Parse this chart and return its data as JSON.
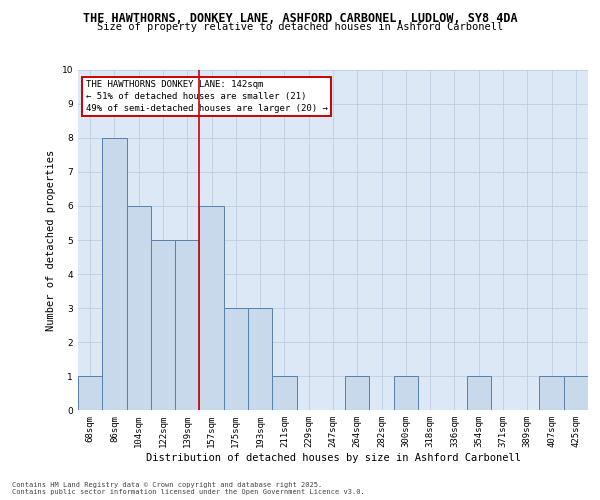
{
  "title1": "THE HAWTHORNS, DONKEY LANE, ASHFORD CARBONEL, LUDLOW, SY8 4DA",
  "title2": "Size of property relative to detached houses in Ashford Carbonell",
  "xlabel": "Distribution of detached houses by size in Ashford Carbonell",
  "ylabel": "Number of detached properties",
  "categories": [
    "68sqm",
    "86sqm",
    "104sqm",
    "122sqm",
    "139sqm",
    "157sqm",
    "175sqm",
    "193sqm",
    "211sqm",
    "229sqm",
    "247sqm",
    "264sqm",
    "282sqm",
    "300sqm",
    "318sqm",
    "336sqm",
    "354sqm",
    "371sqm",
    "389sqm",
    "407sqm",
    "425sqm"
  ],
  "values": [
    1,
    8,
    6,
    5,
    5,
    6,
    3,
    3,
    1,
    0,
    0,
    1,
    0,
    1,
    0,
    0,
    1,
    0,
    0,
    1,
    1
  ],
  "bar_color": "#c9d9ec",
  "bar_edge_color": "#5580b0",
  "vline_x": 4.5,
  "vline_color": "#cc0000",
  "annotation_lines": [
    "THE HAWTHORNS DONKEY LANE: 142sqm",
    "← 51% of detached houses are smaller (21)",
    "49% of semi-detached houses are larger (20) →"
  ],
  "annotation_box_color": "#cc0000",
  "ylim": [
    0,
    10
  ],
  "yticks": [
    0,
    1,
    2,
    3,
    4,
    5,
    6,
    7,
    8,
    9,
    10
  ],
  "grid_color": "#b8c8dc",
  "bg_color": "#dce8f5",
  "footnote1": "Contains HM Land Registry data © Crown copyright and database right 2025.",
  "footnote2": "Contains public sector information licensed under the Open Government Licence v3.0.",
  "title_fontsize": 8.5,
  "subtitle_fontsize": 7.5,
  "axis_label_fontsize": 7.5,
  "tick_fontsize": 6.5,
  "annotation_fontsize": 6.5,
  "footnote_fontsize": 5.0
}
